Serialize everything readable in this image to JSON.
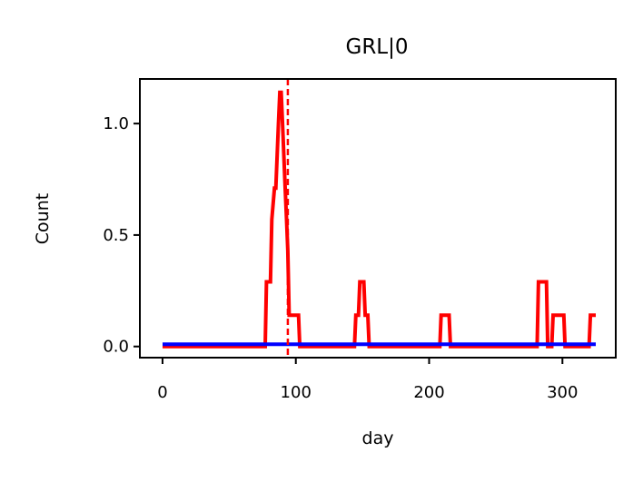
{
  "chart_data": {
    "type": "line",
    "title": "GRL|0",
    "xlabel": "day",
    "ylabel": "Count",
    "xlim": [
      -17,
      340
    ],
    "ylim": [
      -0.05,
      1.2
    ],
    "xticks": [
      0,
      100,
      200,
      300
    ],
    "yticks": [
      0.0,
      0.5,
      1.0
    ],
    "xtick_labels": [
      "0",
      "100",
      "200",
      "300"
    ],
    "ytick_labels": [
      "0.0",
      "0.5",
      "1.0"
    ],
    "grid": false,
    "series": [
      {
        "color": "#ff0000",
        "points": [
          [
            0,
            0
          ],
          [
            77,
            0
          ],
          [
            78,
            0.29
          ],
          [
            81,
            0.29
          ],
          [
            82,
            0.57
          ],
          [
            84,
            0.71
          ],
          [
            85,
            0.71
          ],
          [
            86,
            0.86
          ],
          [
            87,
            1.0
          ],
          [
            88,
            1.14
          ],
          [
            89,
            1.14
          ],
          [
            90,
            1.0
          ],
          [
            91,
            0.86
          ],
          [
            92,
            0.71
          ],
          [
            93,
            0.57
          ],
          [
            94,
            0.43
          ],
          [
            95,
            0.14
          ],
          [
            102,
            0.14
          ],
          [
            103,
            0
          ],
          [
            144,
            0
          ],
          [
            145,
            0.14
          ],
          [
            147,
            0.14
          ],
          [
            148,
            0.29
          ],
          [
            151,
            0.29
          ],
          [
            152,
            0.14
          ],
          [
            154,
            0.14
          ],
          [
            155,
            0
          ],
          [
            208,
            0
          ],
          [
            209,
            0.14
          ],
          [
            215,
            0.14
          ],
          [
            216,
            0
          ],
          [
            281,
            0
          ],
          [
            282,
            0.29
          ],
          [
            288,
            0.29
          ],
          [
            289,
            0
          ],
          [
            292,
            0
          ],
          [
            293,
            0.14
          ],
          [
            301,
            0.14
          ],
          [
            302,
            0
          ],
          [
            320,
            0
          ],
          [
            321,
            0.14
          ],
          [
            325,
            0.14
          ]
        ]
      },
      {
        "color": "#0000ff",
        "points": [
          [
            0,
            0.01
          ],
          [
            325,
            0.01
          ]
        ]
      }
    ],
    "vline": {
      "x": 94,
      "color": "#ff0000",
      "style": "dashed"
    }
  }
}
